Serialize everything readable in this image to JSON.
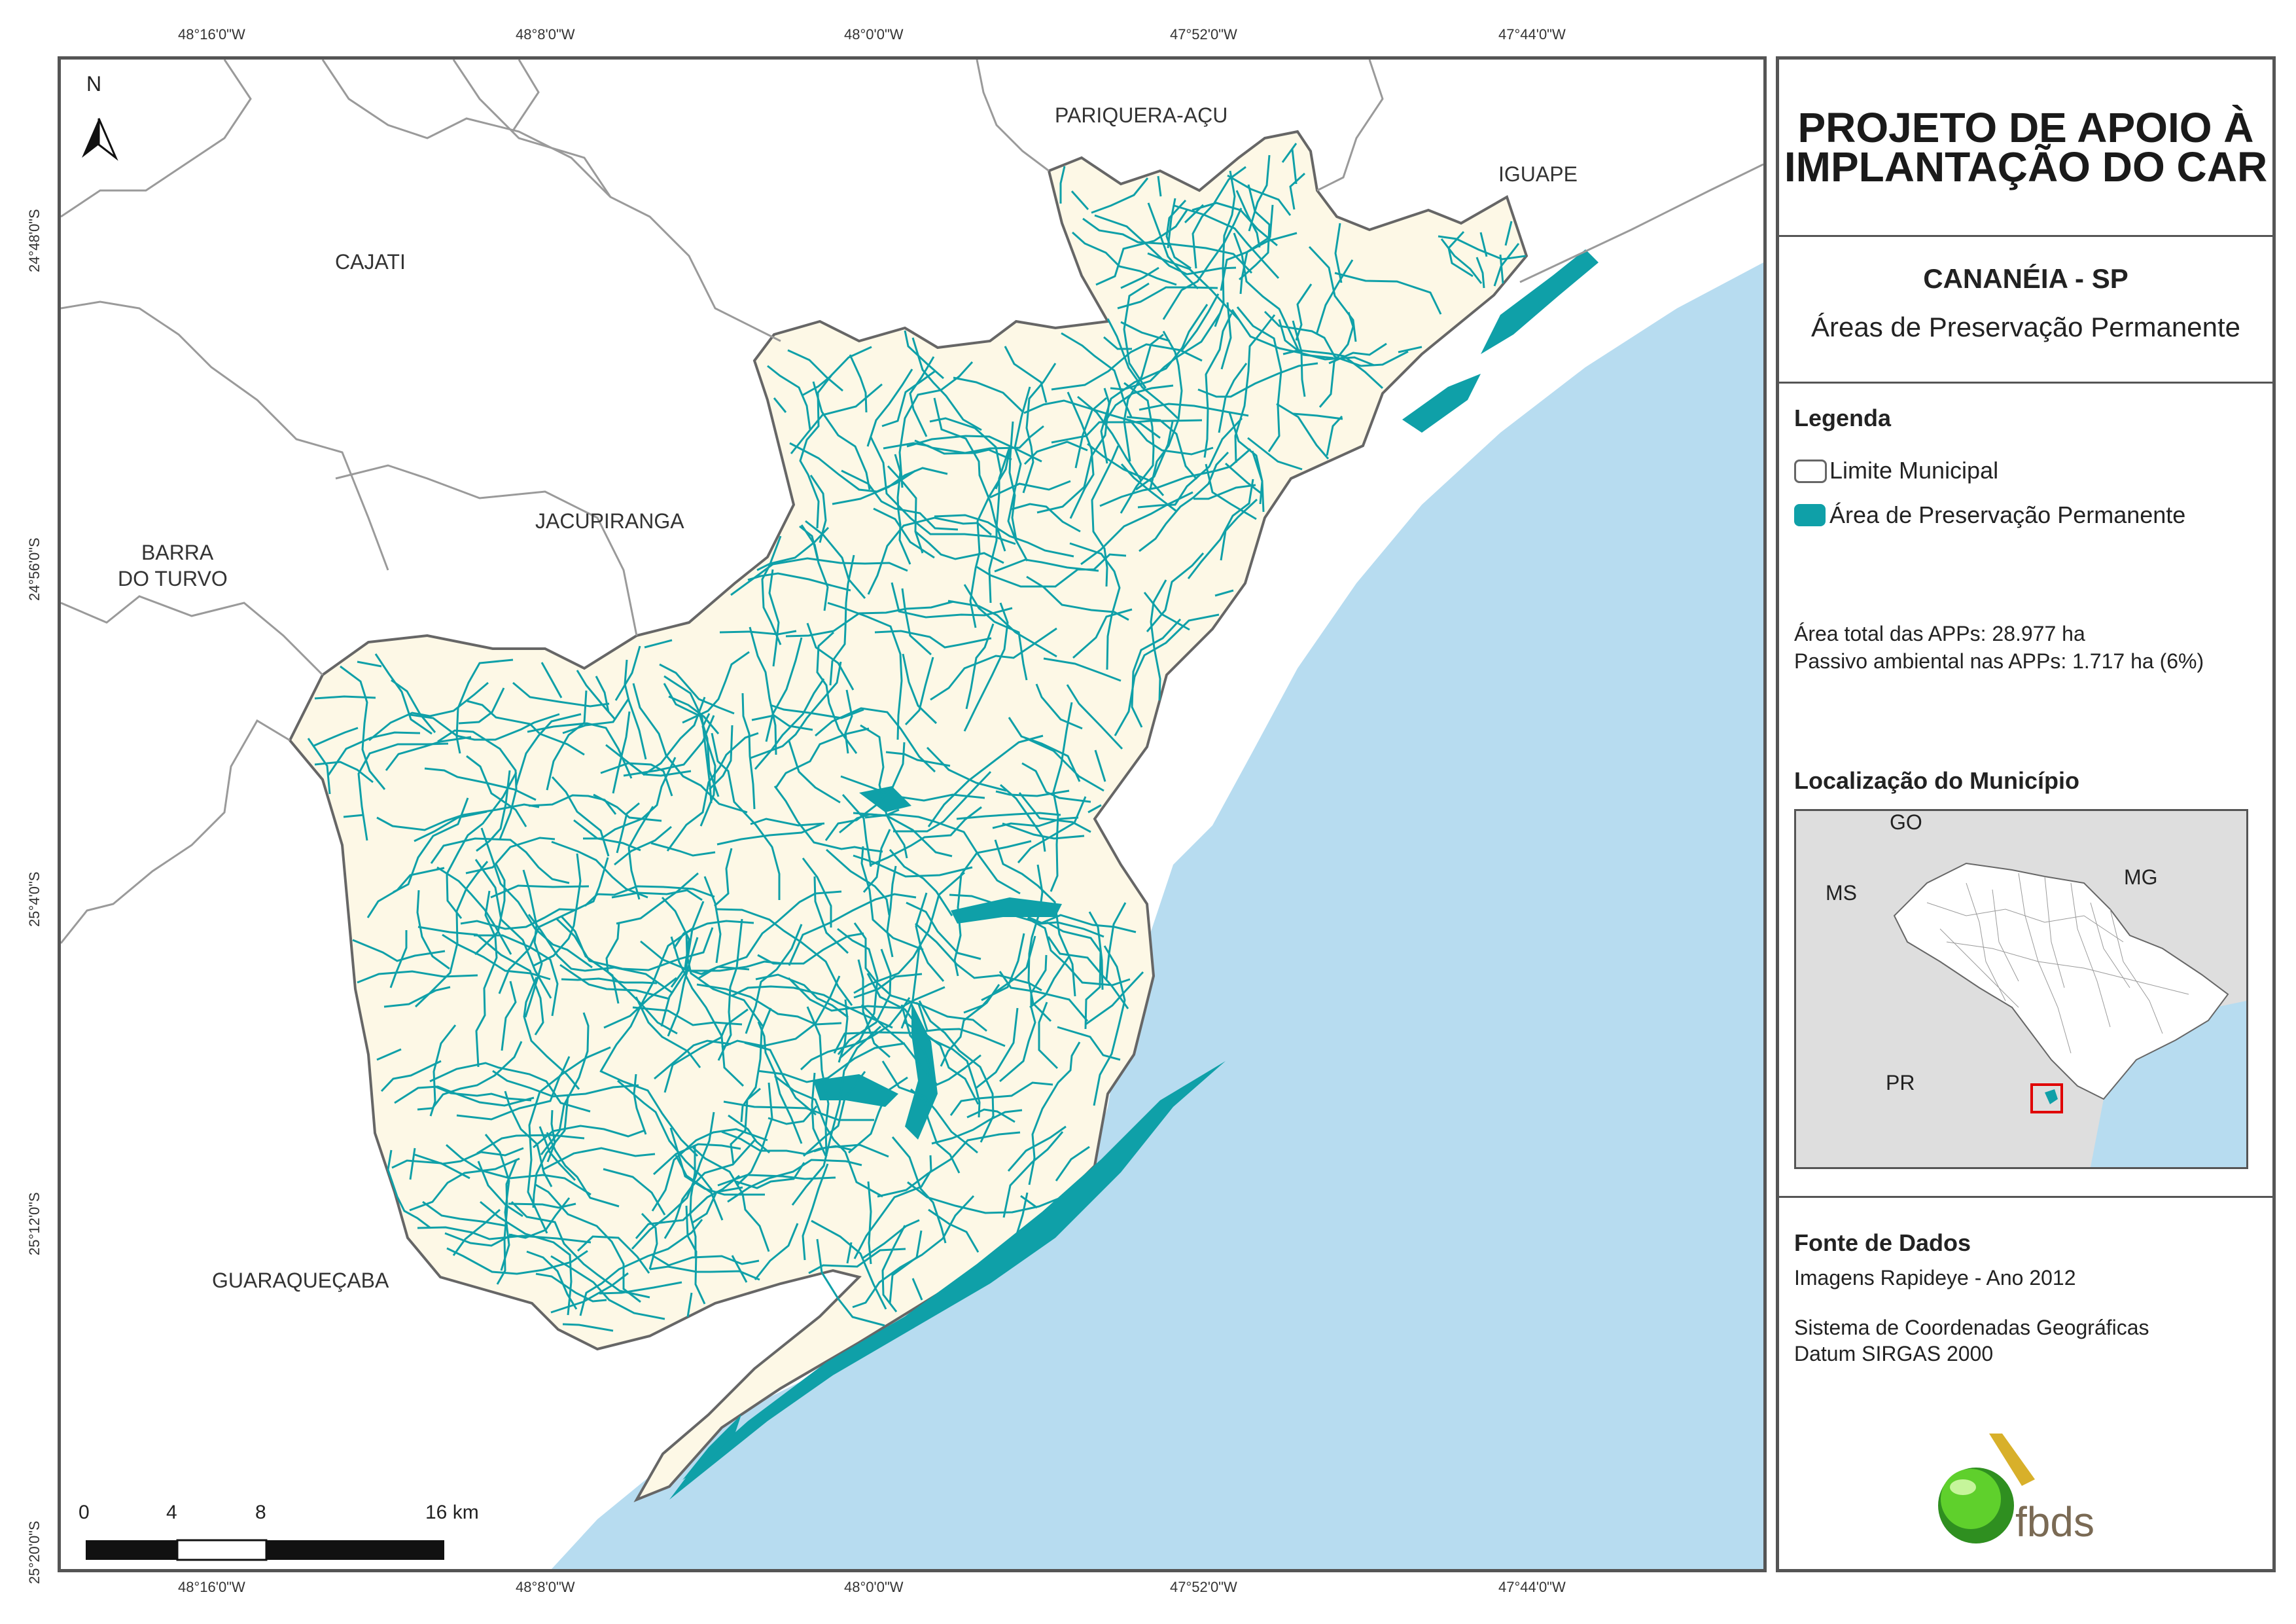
{
  "map": {
    "north_arrow": "N",
    "coords_top": [
      "48°16'0\"W",
      "48°8'0\"W",
      "48°0'0\"W",
      "47°52'0\"W",
      "47°44'0\"W"
    ],
    "coords_bottom": [
      "48°16'0\"W",
      "48°8'0\"W",
      "48°0'0\"W",
      "47°52'0\"W",
      "47°44'0\"W"
    ],
    "coords_left": [
      "24°48'0\"S",
      "24°56'0\"S",
      "25°4'0\"S",
      "25°12'0\"S",
      "25°20'0\"S"
    ],
    "municipalities": {
      "pariquera": "PARIQUERA-AÇU",
      "iguape": "IGUAPE",
      "cajati": "CAJATI",
      "jacupiranga": "JACUPIRANGA",
      "barra_line1": "BARRA",
      "barra_line2": "DO TURVO",
      "guaraquecaba": "GUARAQUEÇABA"
    },
    "scale_bar": {
      "labels": [
        "0",
        "4",
        "8",
        "16 km"
      ]
    },
    "colors": {
      "ocean": "#b7dcf0",
      "municipality": "#fdf8e6",
      "app": "#0fa0a8",
      "boundary": "#666666"
    }
  },
  "panel": {
    "title_line1": "PROJETO DE APOIO À",
    "title_line2": "IMPLANTAÇÃO DO CAR",
    "municipality": "CANANÉIA - SP",
    "subtitle": "Áreas de Preservação Permanente",
    "legend": {
      "heading": "Legenda",
      "item1": "Limite Municipal",
      "item2": "Área de Preservação Permanente"
    },
    "stats": {
      "line1": "Área total das APPs: 28.977 ha",
      "line2": "Passivo ambiental nas APPs: 1.717 ha (6%)"
    },
    "location": {
      "heading": "Localização do Município",
      "labels": {
        "go": "GO",
        "ms": "MS",
        "mg": "MG",
        "pr": "PR"
      }
    },
    "sources": {
      "heading": "Fonte de Dados",
      "line1": "Imagens Rapideye - Ano 2012",
      "line2": "Sistema de Coordenadas Geográficas",
      "line3": "Datum SIRGAS 2000"
    },
    "logo_text": "fbds"
  }
}
